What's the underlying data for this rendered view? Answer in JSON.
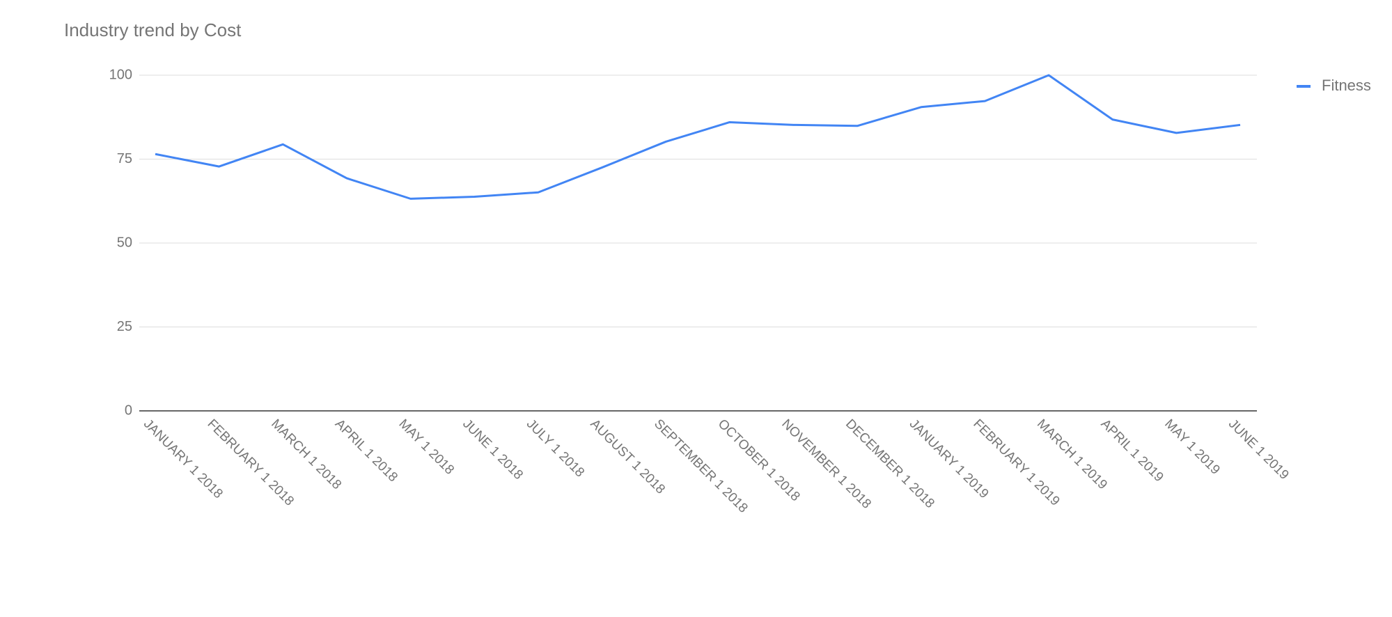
{
  "chart_data": {
    "type": "line",
    "title": "Industry trend by Cost",
    "categories": [
      "JANUARY 1 2018",
      "FEBRUARY 1 2018",
      "MARCH 1 2018",
      "APRIL 1 2018",
      "MAY 1 2018",
      "JUNE 1 2018",
      "JULY 1 2018",
      "AUGUST 1 2018",
      "SEPTEMBER 1 2018",
      "OCTOBER 1 2018",
      "NOVEMBER 1 2018",
      "DECEMBER 1 2018",
      "JANUARY 1 2019",
      "FEBRUARY 1 2019",
      "MARCH 1 2019",
      "APRIL 1 2019",
      "MAY 1 2019",
      "JUNE 1 2019"
    ],
    "series": [
      {
        "name": "Fitness",
        "color": "#4285f4",
        "values": [
          76.5,
          72.8,
          79.4,
          69.3,
          63.2,
          63.8,
          65.1,
          72.5,
          80.2,
          86,
          85.2,
          84.9,
          90.5,
          92.3,
          100,
          86.8,
          82.8,
          85.2
        ]
      }
    ],
    "ylim": [
      0,
      100
    ],
    "yticks": [
      0,
      25,
      50,
      75,
      100
    ],
    "grid": true,
    "legend": "right"
  }
}
